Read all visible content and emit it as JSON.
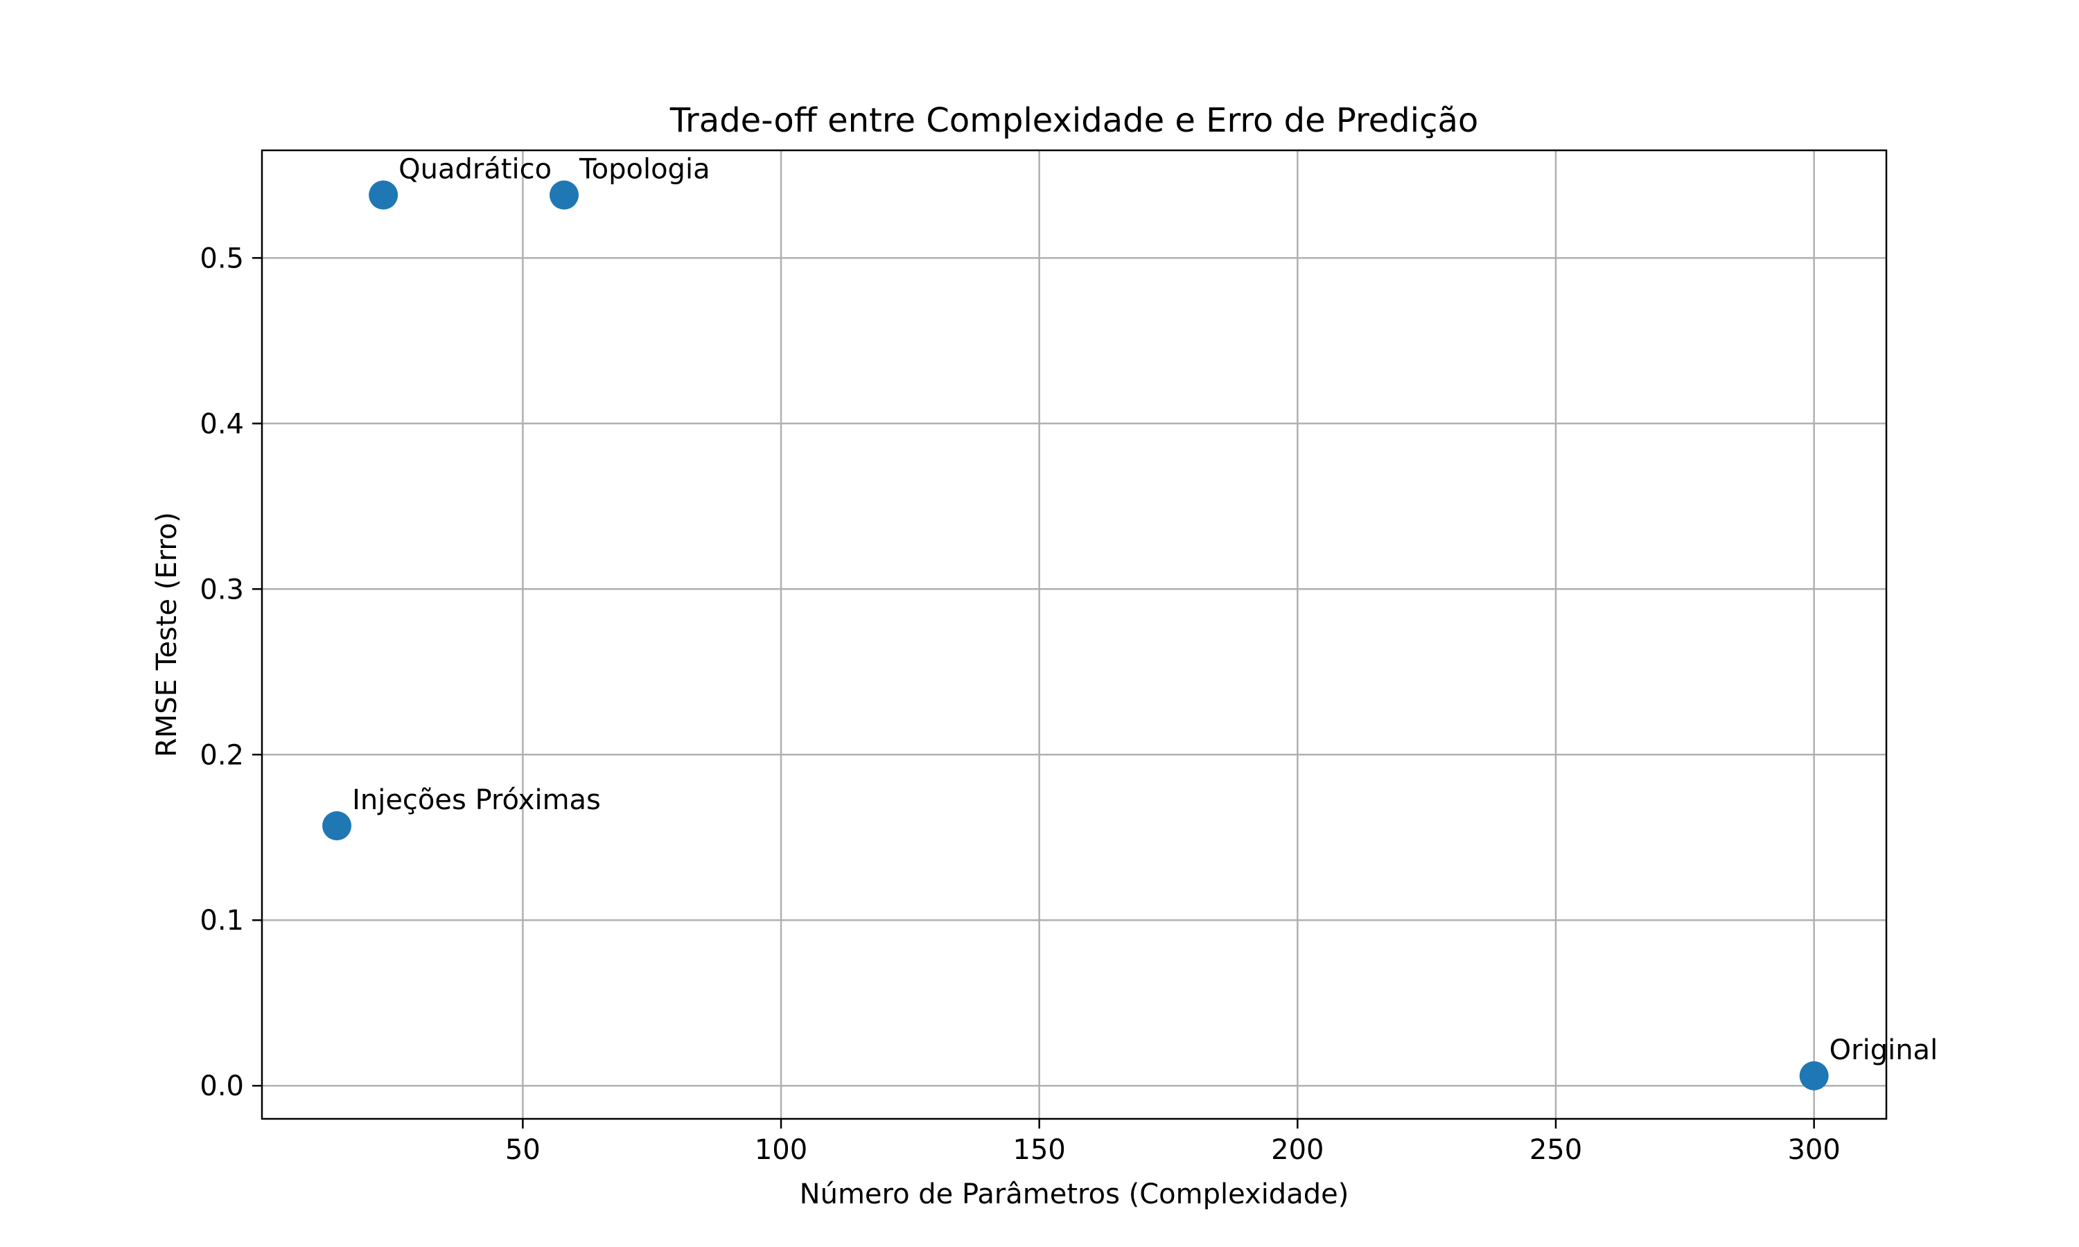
{
  "chart_data": {
    "type": "scatter",
    "title": "Trade-off entre Complexidade e Erro de Predição",
    "xlabel": "Número de Parâmetros (Complexidade)",
    "ylabel": "RMSE Teste (Erro)",
    "xlim": [
      -0.5,
      314
    ],
    "ylim": [
      -0.02,
      0.565
    ],
    "xticks": [
      50,
      100,
      150,
      200,
      250,
      300
    ],
    "yticks": [
      0.0,
      0.1,
      0.2,
      0.3,
      0.4,
      0.5
    ],
    "xtick_labels": [
      "50",
      "100",
      "150",
      "200",
      "250",
      "300"
    ],
    "ytick_labels": [
      "0.0",
      "0.1",
      "0.2",
      "0.3",
      "0.4",
      "0.5"
    ],
    "grid": true,
    "marker_color": "#1f77b4",
    "points": [
      {
        "label": "Quadrático",
        "x": 23,
        "y": 0.538
      },
      {
        "label": "Topologia",
        "x": 58,
        "y": 0.538
      },
      {
        "label": "Injeções Próximas",
        "x": 14,
        "y": 0.157
      },
      {
        "label": "Original",
        "x": 300,
        "y": 0.006
      }
    ]
  }
}
